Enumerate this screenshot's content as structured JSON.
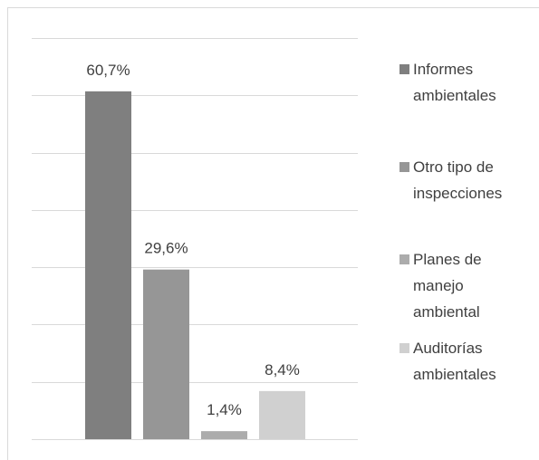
{
  "chart_data": {
    "type": "bar",
    "series": [
      {
        "name": "Informes ambientales",
        "color": "#7f7f7f",
        "values": [
          60.7
        ],
        "value_labels": [
          "60,7%"
        ]
      },
      {
        "name": "Otro tipo de inspecciones",
        "color": "#969696",
        "values": [
          29.6
        ],
        "value_labels": [
          "29,6%"
        ]
      },
      {
        "name": "Planes de manejo ambiental",
        "color": "#acacac",
        "values": [
          1.4
        ],
        "value_labels": [
          "1,4%"
        ]
      },
      {
        "name": "Auditorías ambientales",
        "color": "#d0d0d0",
        "values": [
          8.4
        ],
        "value_labels": [
          "8,4%"
        ]
      }
    ],
    "ylim": [
      0,
      70
    ],
    "yticks": [
      0,
      10,
      20,
      30,
      40,
      50,
      60,
      70
    ],
    "grid": true,
    "legend": "right"
  }
}
